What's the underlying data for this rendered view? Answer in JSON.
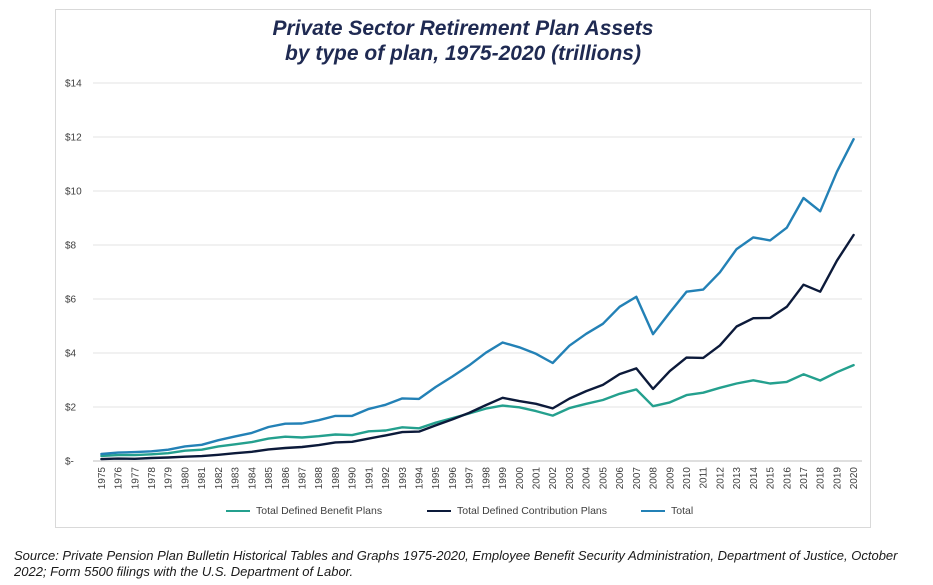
{
  "title_line1": "Private Sector Retirement Plan Assets",
  "title_line2": "by type of plan, 1975-2020 (trillions)",
  "source": "Source: Private Pension Plan Bulletin Historical Tables and Graphs 1975-2020, Employee Benefit Security Administration, Department of Justice, October 2022; Form 5500 filings with the U.S. Department of Labor.",
  "chart_data": {
    "type": "line",
    "title": "Private Sector Retirement Plan Assets by type of plan, 1975-2020 (trillions)",
    "xlabel": "",
    "ylabel": "",
    "ylim": [
      0,
      14
    ],
    "y_ticks": [
      0,
      2,
      4,
      6,
      8,
      10,
      12,
      14
    ],
    "y_tick_labels": [
      "$-",
      "$2",
      "$4",
      "$6",
      "$8",
      "$10",
      "$12",
      "$14"
    ],
    "grid": true,
    "legend_position": "bottom",
    "x": [
      "1975",
      "1976",
      "1977",
      "1978",
      "1979",
      "1980",
      "1981",
      "1982",
      "1983",
      "1984",
      "1985",
      "1986",
      "1987",
      "1988",
      "1989",
      "1990",
      "1991",
      "1992",
      "1993",
      "1994",
      "1995",
      "1996",
      "1997",
      "1998",
      "1999",
      "2000",
      "2001",
      "2002",
      "2003",
      "2004",
      "2005",
      "2006",
      "2007",
      "2008",
      "2009",
      "2010",
      "2011",
      "2012",
      "2013",
      "2014",
      "2015",
      "2016",
      "2017",
      "2018",
      "2019",
      "2020"
    ],
    "series": [
      {
        "name": "Total Defined Benefit Plans",
        "color": "#24a08e",
        "values": [
          0.19,
          0.22,
          0.22,
          0.25,
          0.29,
          0.38,
          0.42,
          0.54,
          0.62,
          0.7,
          0.83,
          0.9,
          0.87,
          0.92,
          0.98,
          0.96,
          1.1,
          1.13,
          1.25,
          1.21,
          1.42,
          1.59,
          1.76,
          1.94,
          2.05,
          1.99,
          1.85,
          1.68,
          1.96,
          2.12,
          2.26,
          2.49,
          2.65,
          2.03,
          2.17,
          2.44,
          2.53,
          2.71,
          2.87,
          2.99,
          2.87,
          2.93,
          3.21,
          2.98,
          3.29,
          3.55
        ]
      },
      {
        "name": "Total Defined Contribution Plans",
        "color": "#0c1a3a",
        "values": [
          0.07,
          0.09,
          0.08,
          0.11,
          0.13,
          0.16,
          0.18,
          0.23,
          0.29,
          0.34,
          0.43,
          0.48,
          0.52,
          0.59,
          0.69,
          0.71,
          0.83,
          0.95,
          1.07,
          1.09,
          1.32,
          1.54,
          1.78,
          2.07,
          2.34,
          2.22,
          2.12,
          1.95,
          2.31,
          2.59,
          2.82,
          3.22,
          3.43,
          2.67,
          3.33,
          3.83,
          3.82,
          4.28,
          4.98,
          5.29,
          5.3,
          5.71,
          6.53,
          6.27,
          7.42,
          8.37
        ]
      },
      {
        "name": "Total",
        "color": "#2381b6",
        "values": [
          0.26,
          0.31,
          0.33,
          0.36,
          0.42,
          0.54,
          0.6,
          0.77,
          0.91,
          1.04,
          1.26,
          1.38,
          1.39,
          1.51,
          1.67,
          1.67,
          1.93,
          2.08,
          2.32,
          2.3,
          2.74,
          3.13,
          3.54,
          4.01,
          4.39,
          4.21,
          3.97,
          3.63,
          4.27,
          4.71,
          5.08,
          5.71,
          6.08,
          4.7,
          5.5,
          6.27,
          6.35,
          6.99,
          7.85,
          8.28,
          8.17,
          8.64,
          9.74,
          9.25,
          10.71,
          11.92
        ]
      }
    ]
  }
}
